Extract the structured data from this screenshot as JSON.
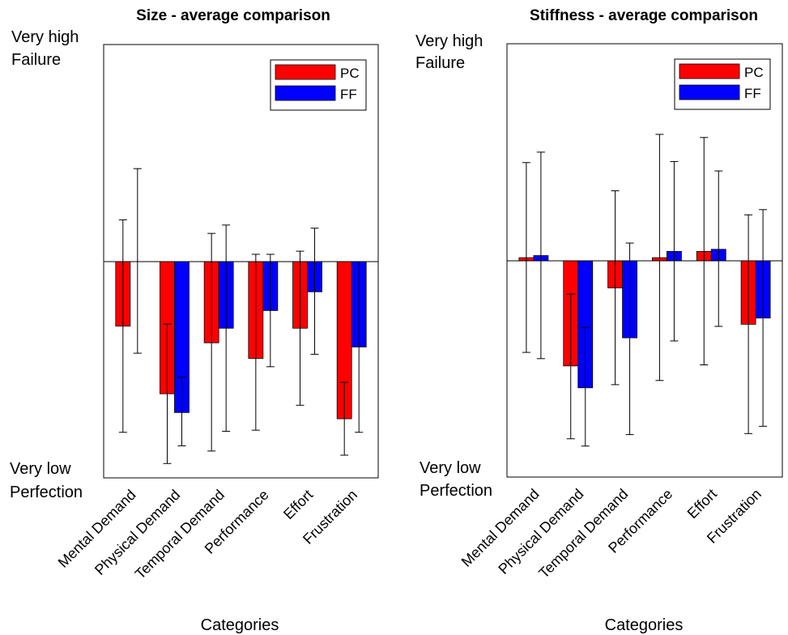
{
  "chart_data": [
    {
      "type": "bar",
      "title": "Size - average comparison",
      "xlabel": "Categories",
      "ylabel_top": [
        "Very high",
        "Failure"
      ],
      "ylabel_bottom": [
        "Very low",
        "Perfection"
      ],
      "categories": [
        "Mental Demand",
        "Physical Demand",
        "Temporal Demand",
        "Performance",
        "Effort",
        "Frustration"
      ],
      "ylim": [
        -1,
        1
      ],
      "grid": false,
      "legend": "top-right",
      "series": [
        {
          "name": "PC",
          "color": "#ff0000",
          "values": [
            -0.31,
            -0.635,
            -0.39,
            -0.465,
            -0.32,
            -0.755
          ],
          "err_low": [
            -0.82,
            -0.97,
            -0.91,
            -0.81,
            -0.69,
            -0.93
          ],
          "err_high": [
            0.2,
            -0.3,
            0.135,
            0.035,
            0.05,
            -0.58
          ]
        },
        {
          "name": "FF",
          "color": "#0000ff",
          "values": [
            0.0,
            -0.725,
            -0.32,
            -0.235,
            -0.145,
            -0.41
          ],
          "err_low": [
            -0.44,
            -0.885,
            -0.815,
            -0.505,
            -0.445,
            -0.82
          ],
          "err_high": [
            0.445,
            -0.555,
            0.175,
            0.035,
            0.16,
            0.0
          ]
        }
      ]
    },
    {
      "type": "bar",
      "title": "Stiffness - average comparison",
      "xlabel": "Categories",
      "ylabel_top": [
        "Very high",
        "Failure"
      ],
      "ylabel_bottom": [
        "Very low",
        "Perfection"
      ],
      "categories": [
        "Mental Demand",
        "Physical Demand",
        "Temporal Demand",
        "Performance",
        "Effort",
        "Frustration"
      ],
      "ylim": [
        -1,
        1
      ],
      "grid": false,
      "legend": "top-right",
      "series": [
        {
          "name": "PC",
          "color": "#ff0000",
          "values": [
            0.015,
            -0.505,
            -0.13,
            0.015,
            0.045,
            -0.305
          ],
          "err_low": [
            -0.44,
            -0.855,
            -0.595,
            -0.575,
            -0.5,
            -0.83
          ],
          "err_high": [
            0.47,
            -0.16,
            0.335,
            0.605,
            0.59,
            0.22
          ]
        },
        {
          "name": "FF",
          "color": "#0000ff",
          "values": [
            0.025,
            -0.61,
            -0.37,
            0.045,
            0.055,
            -0.275
          ],
          "err_low": [
            -0.47,
            -0.89,
            -0.835,
            -0.385,
            -0.315,
            -0.795
          ],
          "err_high": [
            0.52,
            -0.32,
            0.085,
            0.475,
            0.43,
            0.245
          ]
        }
      ]
    }
  ]
}
